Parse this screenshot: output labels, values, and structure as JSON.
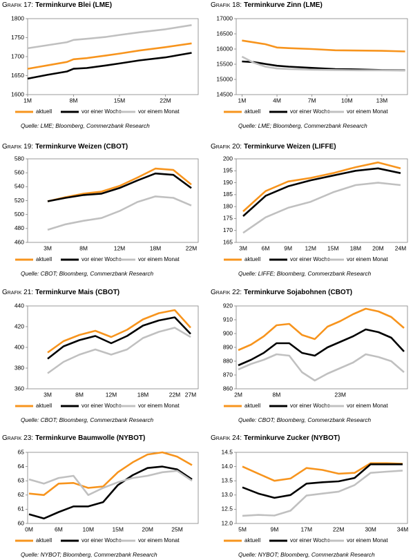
{
  "chart_data": [
    {
      "type": "line",
      "label": "Grafik 17:",
      "title": "Terminkurve Blei (LME)",
      "x": [
        1,
        4,
        7,
        8,
        10,
        13,
        15,
        18,
        22,
        26
      ],
      "xlim": [
        1,
        27
      ],
      "xticks": [
        {
          "value": 1,
          "label": "1M"
        },
        {
          "value": 8,
          "label": "8M"
        },
        {
          "value": 15,
          "label": "15M"
        },
        {
          "value": 22,
          "label": "22M"
        }
      ],
      "ylim": [
        1600,
        1800
      ],
      "yticks": [
        1600,
        1650,
        1700,
        1750,
        1800
      ],
      "series": [
        {
          "name": "aktuell",
          "color": "#f7941d",
          "values": [
            1668,
            1677,
            1686,
            1693,
            1696,
            1703,
            1708,
            1716,
            1725,
            1735
          ]
        },
        {
          "name": "vor einer Woche",
          "color": "#000000",
          "values": [
            1642,
            1652,
            1661,
            1668,
            1670,
            1677,
            1682,
            1690,
            1698,
            1710
          ]
        },
        {
          "name": "vor einem Monat",
          "color": "#c0c0c0",
          "values": [
            1722,
            1730,
            1738,
            1744,
            1747,
            1752,
            1757,
            1764,
            1772,
            1783
          ]
        }
      ],
      "source": "Quelle: LME; Bloomberg, Commerzbank Research"
    },
    {
      "type": "line",
      "label": "Grafik 18:",
      "title": "Terminkurve Zinn (LME)",
      "x": [
        1,
        2,
        3,
        4,
        5,
        7,
        9,
        11,
        13,
        15
      ],
      "xlim": [
        0.5,
        15.2
      ],
      "xticks": [
        {
          "value": 1,
          "label": "1M"
        },
        {
          "value": 4,
          "label": "4M"
        },
        {
          "value": 7,
          "label": "7M"
        },
        {
          "value": 10,
          "label": "10M"
        },
        {
          "value": 13,
          "label": "13M"
        }
      ],
      "ylim": [
        14500,
        17000
      ],
      "yticks": [
        14500,
        15000,
        15500,
        16000,
        16500,
        17000
      ],
      "series": [
        {
          "name": "aktuell",
          "color": "#f7941d",
          "values": [
            16280,
            16220,
            16160,
            16050,
            16030,
            16000,
            15960,
            15950,
            15940,
            15920
          ]
        },
        {
          "name": "vor einer Woche",
          "color": "#000000",
          "values": [
            15590,
            15570,
            15510,
            15450,
            15420,
            15380,
            15340,
            15330,
            15310,
            15300
          ]
        },
        {
          "name": "vor einem Monat",
          "color": "#c0c0c0",
          "values": [
            15750,
            15550,
            15420,
            15360,
            15340,
            15320,
            15310,
            15300,
            15300,
            15290
          ]
        }
      ],
      "source": "Quelle: LME; Bloomberg, Commerzbank Research"
    },
    {
      "type": "line",
      "label": "Grafik 19:",
      "title": "Terminkurve Weizen (CBOT)",
      "categories": [
        "3M",
        null,
        "8M",
        null,
        "12M",
        null,
        "18M",
        null,
        "22M"
      ],
      "ylim": [
        460,
        580
      ],
      "yticks": [
        460,
        480,
        500,
        520,
        540,
        560,
        580
      ],
      "series": [
        {
          "name": "aktuell",
          "color": "#f7941d",
          "values": [
            519,
            525,
            530,
            533,
            541,
            553,
            566,
            564,
            543
          ]
        },
        {
          "name": "vor einer Woche",
          "color": "#000000",
          "values": [
            519,
            524,
            528,
            530,
            538,
            549,
            559,
            557,
            538
          ]
        },
        {
          "name": "vor einem Monat",
          "color": "#c0c0c0",
          "values": [
            478,
            486,
            491,
            495,
            505,
            518,
            526,
            524,
            513
          ]
        }
      ],
      "source": "Quelle: CBOT; Bloomberg, Commerzbank Research"
    },
    {
      "type": "line",
      "label": "Grafik 20:",
      "title": "Terminkurve Weizen (LIFFE)",
      "categories": [
        "3M",
        "6M",
        "9M",
        "12M",
        "15M",
        "18M",
        "20M",
        "24M"
      ],
      "ylim": [
        165,
        200
      ],
      "yticks": [
        165,
        170,
        175,
        180,
        185,
        190,
        195,
        200
      ],
      "series": [
        {
          "name": "aktuell",
          "color": "#f7941d",
          "values": [
            178,
            186.5,
            190.5,
            192,
            194,
            196.5,
            198.5,
            196
          ]
        },
        {
          "name": "vor einer Woche",
          "color": "#000000",
          "values": [
            176,
            184.5,
            188.5,
            191,
            193,
            195,
            196,
            194
          ]
        },
        {
          "name": "vor einem Monat",
          "color": "#c0c0c0",
          "values": [
            169,
            175.5,
            179.5,
            182,
            186,
            189,
            190,
            189
          ]
        }
      ],
      "source": "Quelle: LIFFE; Bloomberg, Commerzbank Research"
    },
    {
      "type": "line",
      "label": "Grafik 21:",
      "title": "Terminkurve Mais (CBOT)",
      "categories": [
        "3M",
        null,
        "8M",
        null,
        "12M",
        null,
        "18M",
        null,
        "22M",
        "27M"
      ],
      "ylim": [
        360,
        440
      ],
      "yticks": [
        360,
        380,
        400,
        420,
        440
      ],
      "series": [
        {
          "name": "aktuell",
          "color": "#f7941d",
          "values": [
            395,
            406,
            412,
            416,
            410,
            417,
            427,
            433,
            436,
            419
          ]
        },
        {
          "name": "vor einer Woche",
          "color": "#000000",
          "values": [
            389,
            401,
            407,
            411,
            404,
            411,
            421,
            426,
            429,
            413
          ]
        },
        {
          "name": "vor einem Monat",
          "color": "#c0c0c0",
          "values": [
            375,
            386,
            393,
            398,
            393,
            398,
            409,
            415,
            419,
            410
          ]
        }
      ],
      "source": "Quelle: CBOT; Bloomberg, Commerzbank Research"
    },
    {
      "type": "line",
      "label": "Grafik 22:",
      "title": "Terminkurve Sojabohnen (CBOT)",
      "categories": [
        "2M",
        null,
        null,
        "8M",
        null,
        null,
        null,
        null,
        "23M",
        null,
        null,
        null,
        null,
        null
      ],
      "ylim": [
        860,
        920
      ],
      "yticks": [
        860,
        870,
        880,
        890,
        900,
        910,
        920
      ],
      "series": [
        {
          "name": "aktuell",
          "color": "#f7941d",
          "values": [
            888,
            892,
            898,
            906,
            907,
            899,
            896,
            905,
            909,
            914,
            918,
            916,
            912,
            904
          ]
        },
        {
          "name": "vor einer Woche",
          "color": "#000000",
          "values": [
            877,
            881,
            886,
            893,
            893,
            886,
            884,
            890,
            894,
            898,
            903,
            901,
            897,
            887
          ]
        },
        {
          "name": "vor einem Monat",
          "color": "#c0c0c0",
          "values": [
            874,
            878,
            881,
            885,
            884,
            872,
            866,
            871,
            875,
            879,
            885,
            883,
            880,
            872
          ]
        }
      ],
      "source": "Quelle: CBOT; Bloomberg, Commerzbank Research"
    },
    {
      "type": "line",
      "label": "Grafik 23:",
      "title": "Terminkurve Baumwolle (NYBOT)",
      "categories": [
        "0M",
        null,
        "6M",
        null,
        "10M",
        null,
        "15M",
        null,
        "20M",
        null,
        "25M",
        null
      ],
      "ylim": [
        60,
        65
      ],
      "yticks": [
        60,
        61,
        62,
        63,
        64,
        65
      ],
      "series": [
        {
          "name": "aktuell",
          "color": "#f7941d",
          "values": [
            62.1,
            62.0,
            62.8,
            62.85,
            62.5,
            62.6,
            63.6,
            64.3,
            64.85,
            65.0,
            64.7,
            64.1
          ]
        },
        {
          "name": "vor einer Woche",
          "color": "#000000",
          "values": [
            60.65,
            60.35,
            60.8,
            61.2,
            61.2,
            61.5,
            62.7,
            63.4,
            63.9,
            64.0,
            63.8,
            63.1
          ]
        },
        {
          "name": "vor einem Monat",
          "color": "#c0c0c0",
          "values": [
            63.1,
            62.8,
            63.2,
            63.35,
            62.0,
            62.5,
            62.9,
            63.2,
            63.35,
            63.6,
            63.7,
            63.0
          ]
        }
      ],
      "source": "Quelle: NYBOT; Bloomberg, Commerzbank Research"
    },
    {
      "type": "line",
      "label": "Grafik 24:",
      "title": "Terminkurve Zucker (NYBOT)",
      "categories": [
        "5M",
        null,
        "9M",
        null,
        "17M",
        null,
        "22M",
        null,
        "30M",
        null,
        "34M"
      ],
      "ylim": [
        12,
        14.5
      ],
      "yticks": [
        {
          "value": 12,
          "label": "12.0"
        },
        12.5,
        {
          "value": 13,
          "label": "13.0"
        },
        13.5,
        {
          "value": 14,
          "label": "14.0"
        },
        14.5
      ],
      "series": [
        {
          "name": "aktuell",
          "color": "#f7941d",
          "values": [
            14.0,
            13.75,
            13.5,
            13.58,
            13.95,
            13.88,
            13.75,
            13.78,
            14.12,
            14.12,
            14.1
          ]
        },
        {
          "name": "vor einer Woche",
          "color": "#000000",
          "values": [
            13.27,
            13.05,
            12.9,
            13.0,
            13.4,
            13.45,
            13.48,
            13.6,
            14.08,
            14.08,
            14.08
          ]
        },
        {
          "name": "vor einem Monat",
          "color": "#c0c0c0",
          "values": [
            12.27,
            12.3,
            12.28,
            12.45,
            12.98,
            13.05,
            13.12,
            13.35,
            13.78,
            13.82,
            13.86
          ]
        }
      ],
      "source": "Quelle: NYBOT; Bloomberg, Commerzbank Research"
    }
  ]
}
